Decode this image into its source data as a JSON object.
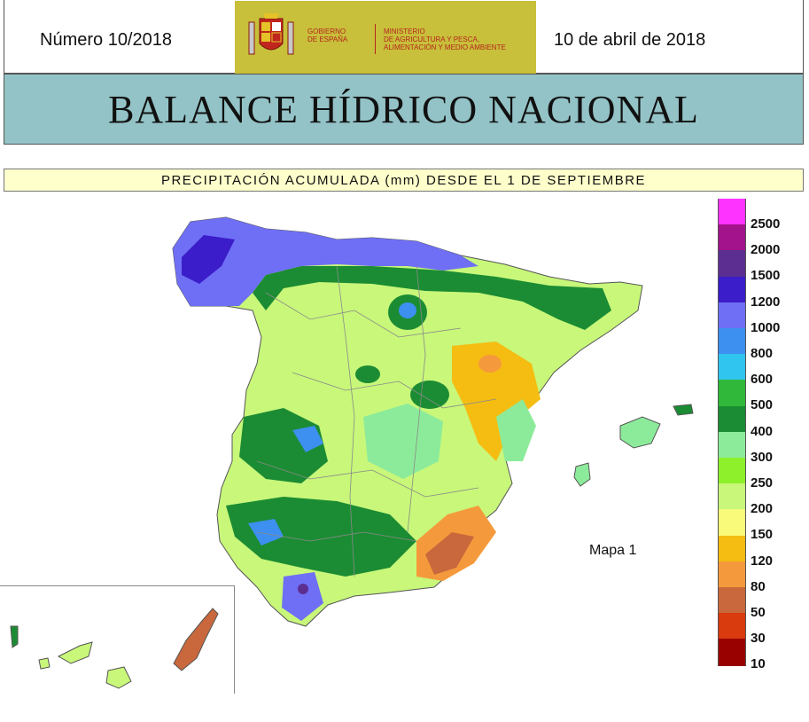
{
  "header": {
    "issue": "Número 10/2018",
    "date": "10 de abril de 2018",
    "logo_gobierno": "GOBIERNO\nDE ESPAÑA",
    "logo_ministerio": "MINISTERIO\nDE AGRICULTURA Y PESCA,\nALIMENTACIÓN Y MEDIO AMBIENTE"
  },
  "title": "BALANCE HÍDRICO NACIONAL",
  "subtitle": "PRECIPITACIÓN ACUMULADA (mm) DESDE EL 1 DE SEPTIEMBRE",
  "map_label": "Mapa 1",
  "legend": {
    "classes": [
      {
        "label": "2500",
        "color": "#ff33ff"
      },
      {
        "label": "2000",
        "color": "#a3138c"
      },
      {
        "label": "1500",
        "color": "#5d2e91"
      },
      {
        "label": "1200",
        "color": "#3b1dc9"
      },
      {
        "label": "1000",
        "color": "#6f6ff5"
      },
      {
        "label": "800",
        "color": "#3d8ff0"
      },
      {
        "label": "600",
        "color": "#2fc5ef"
      },
      {
        "label": "500",
        "color": "#2fb83a"
      },
      {
        "label": "400",
        "color": "#1b8c33"
      },
      {
        "label": "300",
        "color": "#8ceb9a"
      },
      {
        "label": "250",
        "color": "#8ef02a"
      },
      {
        "label": "200",
        "color": "#c8f77a"
      },
      {
        "label": "150",
        "color": "#fafa7a"
      },
      {
        "label": "120",
        "color": "#f5bd12"
      },
      {
        "label": "80",
        "color": "#f59a3c"
      },
      {
        "label": "50",
        "color": "#c8683c"
      },
      {
        "label": "30",
        "color": "#d93a0e"
      },
      {
        "label": "10",
        "color": "#990000"
      }
    ]
  },
  "colors": {
    "title_band": "#93c3c7",
    "subtitle_band": "#ffffcc",
    "logo_background": "#c8bf3a",
    "sea": "#ffffff"
  }
}
